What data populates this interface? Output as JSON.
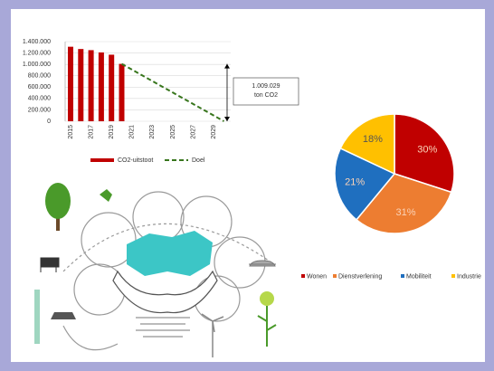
{
  "chart_data": [
    {
      "type": "combo",
      "categories": [
        "2015",
        null,
        "2017",
        null,
        "2019",
        null,
        "2021",
        null,
        "2023",
        null,
        "2025",
        null,
        "2027",
        null,
        "2029",
        null
      ],
      "series": [
        {
          "name": "CO2-uitstoot",
          "color": "#c00000",
          "kind": "bar",
          "values": [
            1310000,
            1270000,
            1250000,
            1210000,
            1170000,
            1009029,
            null,
            null,
            null,
            null,
            null,
            null,
            null,
            null,
            null,
            null
          ]
        },
        {
          "name": "Doel",
          "color": "#38761d",
          "kind": "line",
          "dash": true,
          "values": [
            null,
            null,
            null,
            null,
            null,
            1009029,
            908126,
            807223,
            706320,
            605417,
            504515,
            403612,
            302709,
            201806,
            100903,
            0
          ]
        }
      ],
      "ylim": [
        0,
        1400000
      ],
      "yticks": [
        {
          "value": 0,
          "label": "0"
        },
        {
          "value": 200000,
          "label": "200.000"
        },
        {
          "value": 400000,
          "label": "400.000"
        },
        {
          "value": 600000,
          "label": "600.000"
        },
        {
          "value": 800000,
          "label": "800.000"
        },
        {
          "value": 1000000,
          "label": "1.000.000"
        },
        {
          "value": 1200000,
          "label": "1.200.000"
        },
        {
          "value": 1400000,
          "label": "1.400.000"
        }
      ],
      "annotation": [
        "1.009.029",
        "ton CO2"
      ]
    },
    {
      "type": "pie",
      "categories": [
        "Wonen",
        "Dienstverlening",
        "Mobiliteit",
        "Industrie"
      ],
      "values": [
        30,
        31,
        21,
        18
      ],
      "value_labels": [
        "30%",
        "31%",
        "21%",
        "18%"
      ],
      "colors": [
        "#c00000",
        "#ed7d31",
        "#1f6fbf",
        "#ffc000"
      ]
    }
  ]
}
